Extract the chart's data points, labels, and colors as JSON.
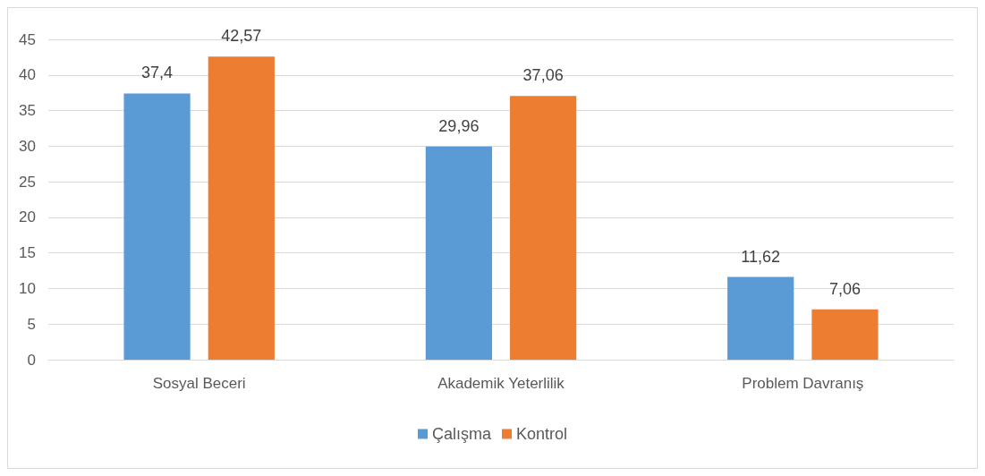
{
  "chart_data": {
    "type": "bar",
    "categories": [
      "Sosyal Beceri",
      "Akademik Yeterlilik",
      "Problem Davranış"
    ],
    "series": [
      {
        "name": "Çalışma",
        "color": "#5b9bd5",
        "values": [
          37.4,
          29.96,
          11.62
        ],
        "value_labels": [
          "37,4",
          "29,96",
          "11,62"
        ]
      },
      {
        "name": "Kontrol",
        "color": "#ed7d31",
        "values": [
          42.57,
          37.06,
          7.06
        ],
        "value_labels": [
          "42,57",
          "37,06",
          "7,06"
        ]
      }
    ],
    "ylim": [
      0,
      45
    ],
    "yticks": [
      0,
      5,
      10,
      15,
      20,
      25,
      30,
      35,
      40,
      45
    ],
    "grid": "y",
    "legend": "bottom"
  }
}
